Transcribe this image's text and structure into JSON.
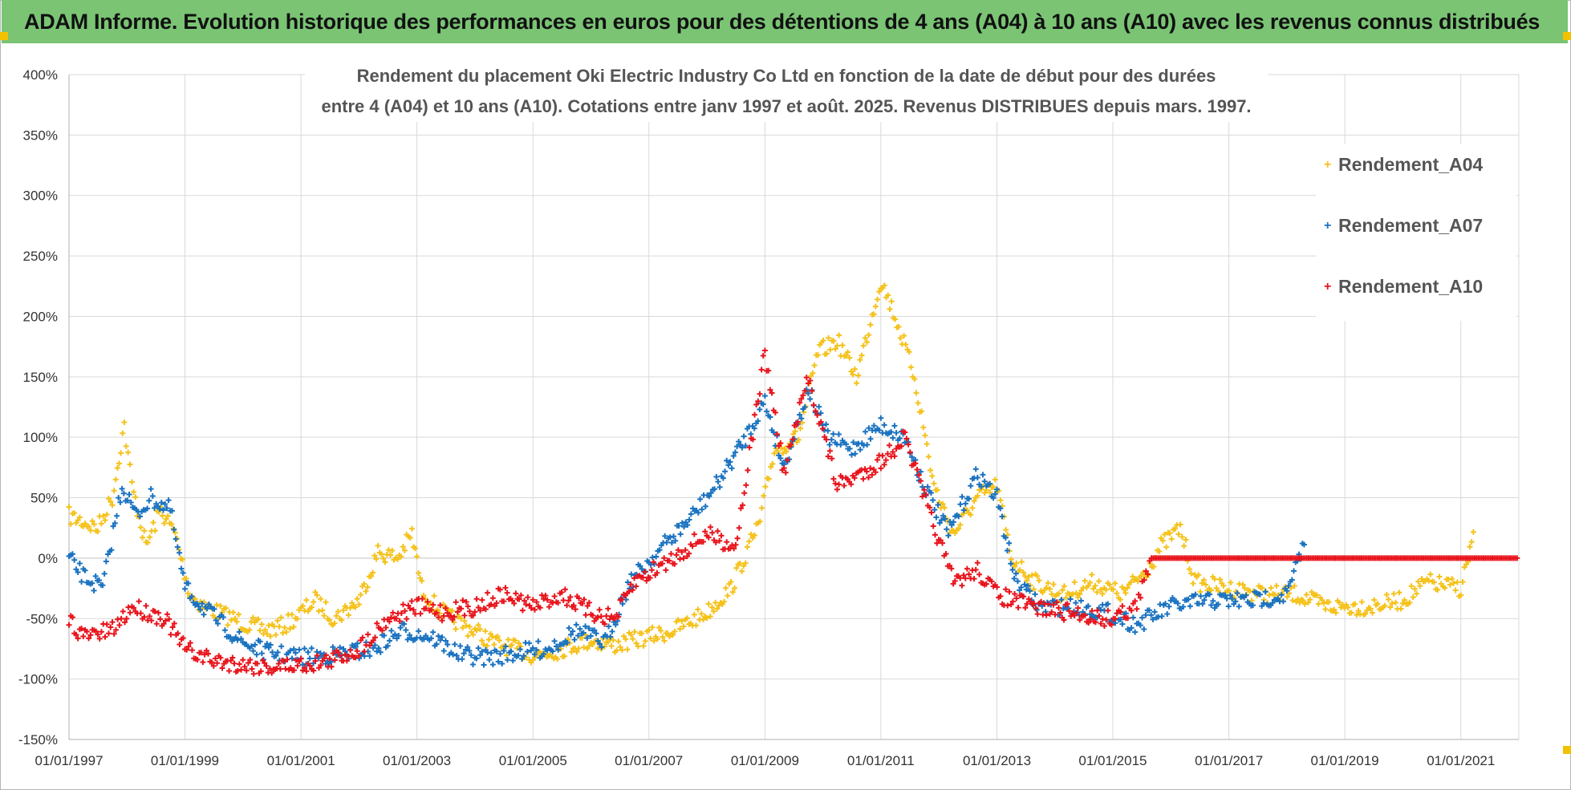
{
  "banner": {
    "title": "ADAM Informe. Evolution historique des performances en euros pour des détentions de 4 ans (A04) à 10 ans (A10) avec les revenus connus distribués"
  },
  "chart_data": {
    "type": "scatter",
    "title_line1": "Rendement du placement Oki Electric Industry Co Ltd en fonction de la date de début pour des durées",
    "title_line2": "entre 4 (A04) et 10 ans (A10). Cotations entre janv 1997 et août. 2025. Revenus DISTRIBUES depuis mars. 1997.",
    "x_start": "1997-01-01",
    "x_end": "2022-01-01",
    "x_tick_labels": [
      "01/01/1997",
      "01/01/1999",
      "01/01/2001",
      "01/01/2003",
      "01/01/2005",
      "01/01/2007",
      "01/01/2009",
      "01/01/2011",
      "01/01/2013",
      "01/01/2015",
      "01/01/2017",
      "01/01/2019",
      "01/01/2021"
    ],
    "y_tick_labels": [
      "400%",
      "350%",
      "300%",
      "250%",
      "200%",
      "150%",
      "100%",
      "50%",
      "0%",
      "-50%",
      "-100%",
      "-150%"
    ],
    "ylim": [
      -150,
      400
    ],
    "y_unit": "%",
    "grid": true,
    "legend_position": "right",
    "series": [
      {
        "name": "Rendement_A04",
        "color": "#f5c21b",
        "points": [
          [
            "1997-01-01",
            35
          ],
          [
            "1997-04-01",
            30
          ],
          [
            "1997-07-01",
            25
          ],
          [
            "1997-10-01",
            50
          ],
          [
            "1997-12-15",
            110
          ],
          [
            "1998-02-01",
            60
          ],
          [
            "1998-05-01",
            10
          ],
          [
            "1998-08-01",
            40
          ],
          [
            "1998-11-01",
            20
          ],
          [
            "1999-02-01",
            -30
          ],
          [
            "1999-05-01",
            -40
          ],
          [
            "1999-08-01",
            -45
          ],
          [
            "1999-11-01",
            -50
          ],
          [
            "2000-02-01",
            -55
          ],
          [
            "2000-06-01",
            -60
          ],
          [
            "2000-10-01",
            -55
          ],
          [
            "2001-01-01",
            -45
          ],
          [
            "2001-04-01",
            -35
          ],
          [
            "2001-08-01",
            -50
          ],
          [
            "2002-01-01",
            -35
          ],
          [
            "2002-05-01",
            5
          ],
          [
            "2002-09-01",
            0
          ],
          [
            "2002-12-01",
            20
          ],
          [
            "2003-02-01",
            -25
          ],
          [
            "2003-05-01",
            -40
          ],
          [
            "2003-08-01",
            -50
          ],
          [
            "2004-01-01",
            -60
          ],
          [
            "2004-05-01",
            -70
          ],
          [
            "2004-09-01",
            -75
          ],
          [
            "2005-01-01",
            -80
          ],
          [
            "2005-05-01",
            -78
          ],
          [
            "2005-09-01",
            -72
          ],
          [
            "2006-01-01",
            -68
          ],
          [
            "2006-06-01",
            -72
          ],
          [
            "2007-01-01",
            -65
          ],
          [
            "2007-06-01",
            -60
          ],
          [
            "2008-01-01",
            -45
          ],
          [
            "2008-06-01",
            -25
          ],
          [
            "2008-12-01",
            30
          ],
          [
            "2009-03-01",
            90
          ],
          [
            "2009-08-01",
            100
          ],
          [
            "2009-12-01",
            170
          ],
          [
            "2010-04-01",
            180
          ],
          [
            "2010-08-01",
            150
          ],
          [
            "2011-01-01",
            230
          ],
          [
            "2011-04-01",
            200
          ],
          [
            "2011-08-01",
            150
          ],
          [
            "2011-12-01",
            60
          ],
          [
            "2012-04-01",
            20
          ],
          [
            "2012-09-01",
            50
          ],
          [
            "2013-01-01",
            60
          ],
          [
            "2013-04-01",
            0
          ],
          [
            "2013-09-01",
            -20
          ],
          [
            "2014-03-01",
            -30
          ],
          [
            "2014-09-01",
            -20
          ],
          [
            "2015-03-01",
            -30
          ],
          [
            "2015-08-01",
            -10
          ],
          [
            "2015-11-01",
            10
          ],
          [
            "2016-03-01",
            25
          ],
          [
            "2016-06-01",
            -20
          ],
          [
            "2017-01-01",
            -25
          ],
          [
            "2017-09-01",
            -30
          ],
          [
            "2018-03-01",
            -30
          ],
          [
            "2018-09-01",
            -40
          ],
          [
            "2019-06-01",
            -40
          ],
          [
            "2020-01-01",
            -35
          ],
          [
            "2020-06-01",
            -20
          ],
          [
            "2021-01-01",
            -25
          ],
          [
            "2021-04-01",
            25
          ]
        ]
      },
      {
        "name": "Rendement_A07",
        "color": "#1a72c0",
        "points": [
          [
            "1997-01-01",
            0
          ],
          [
            "1997-04-01",
            -15
          ],
          [
            "1997-08-01",
            -25
          ],
          [
            "1997-12-01",
            60
          ],
          [
            "1998-03-01",
            35
          ],
          [
            "1998-06-01",
            50
          ],
          [
            "1998-10-01",
            40
          ],
          [
            "1999-01-01",
            -25
          ],
          [
            "1999-06-01",
            -45
          ],
          [
            "2000-01-01",
            -70
          ],
          [
            "2000-06-01",
            -78
          ],
          [
            "2001-01-01",
            -82
          ],
          [
            "2001-08-01",
            -80
          ],
          [
            "2002-04-01",
            -75
          ],
          [
            "2002-10-01",
            -60
          ],
          [
            "2003-04-01",
            -65
          ],
          [
            "2003-10-01",
            -80
          ],
          [
            "2004-04-01",
            -82
          ],
          [
            "2004-10-01",
            -78
          ],
          [
            "2005-04-01",
            -75
          ],
          [
            "2005-10-01",
            -60
          ],
          [
            "2006-04-01",
            -70
          ],
          [
            "2006-09-01",
            -20
          ],
          [
            "2007-04-01",
            10
          ],
          [
            "2007-09-01",
            30
          ],
          [
            "2008-03-01",
            60
          ],
          [
            "2008-09-01",
            100
          ],
          [
            "2009-01-01",
            130
          ],
          [
            "2009-05-01",
            75
          ],
          [
            "2009-10-01",
            140
          ],
          [
            "2010-02-01",
            100
          ],
          [
            "2010-07-01",
            90
          ],
          [
            "2011-01-01",
            110
          ],
          [
            "2011-06-01",
            100
          ],
          [
            "2011-10-01",
            60
          ],
          [
            "2012-03-01",
            20
          ],
          [
            "2012-09-01",
            70
          ],
          [
            "2013-01-01",
            50
          ],
          [
            "2013-05-01",
            -20
          ],
          [
            "2013-10-01",
            -40
          ],
          [
            "2014-05-01",
            -40
          ],
          [
            "2014-12-01",
            -45
          ],
          [
            "2015-06-01",
            -55
          ],
          [
            "2016-01-01",
            -40
          ],
          [
            "2016-09-01",
            -35
          ],
          [
            "2017-06-01",
            -35
          ],
          [
            "2018-01-01",
            -30
          ],
          [
            "2018-05-01",
            15
          ]
        ]
      },
      {
        "name": "Rendement_A10",
        "color": "#e8141c",
        "points": [
          [
            "1997-01-01",
            -50
          ],
          [
            "1997-04-01",
            -65
          ],
          [
            "1997-10-01",
            -60
          ],
          [
            "1998-02-01",
            -40
          ],
          [
            "1998-09-01",
            -50
          ],
          [
            "1999-01-01",
            -75
          ],
          [
            "1999-07-01",
            -85
          ],
          [
            "2000-01-01",
            -88
          ],
          [
            "2000-07-01",
            -90
          ],
          [
            "2001-01-01",
            -88
          ],
          [
            "2001-07-01",
            -85
          ],
          [
            "2002-01-01",
            -75
          ],
          [
            "2002-07-01",
            -50
          ],
          [
            "2003-01-01",
            -40
          ],
          [
            "2003-07-01",
            -45
          ],
          [
            "2004-01-01",
            -40
          ],
          [
            "2004-07-01",
            -30
          ],
          [
            "2005-01-01",
            -40
          ],
          [
            "2005-07-01",
            -30
          ],
          [
            "2006-01-01",
            -45
          ],
          [
            "2006-06-01",
            -50
          ],
          [
            "2006-10-01",
            -20
          ],
          [
            "2007-06-01",
            0
          ],
          [
            "2008-01-01",
            20
          ],
          [
            "2008-07-01",
            10
          ],
          [
            "2009-01-01",
            170
          ],
          [
            "2009-05-01",
            70
          ],
          [
            "2009-10-01",
            150
          ],
          [
            "2010-04-01",
            60
          ],
          [
            "2010-09-01",
            70
          ],
          [
            "2011-01-01",
            80
          ],
          [
            "2011-06-01",
            100
          ],
          [
            "2011-10-01",
            50
          ],
          [
            "2012-04-01",
            -20
          ],
          [
            "2012-09-01",
            -10
          ],
          [
            "2013-01-01",
            -30
          ],
          [
            "2013-08-01",
            -40
          ],
          [
            "2014-04-01",
            -45
          ],
          [
            "2014-12-01",
            -50
          ],
          [
            "2015-06-01",
            -40
          ],
          [
            "2015-09-01",
            0
          ],
          [
            "2022-01-01",
            0
          ]
        ]
      }
    ]
  }
}
